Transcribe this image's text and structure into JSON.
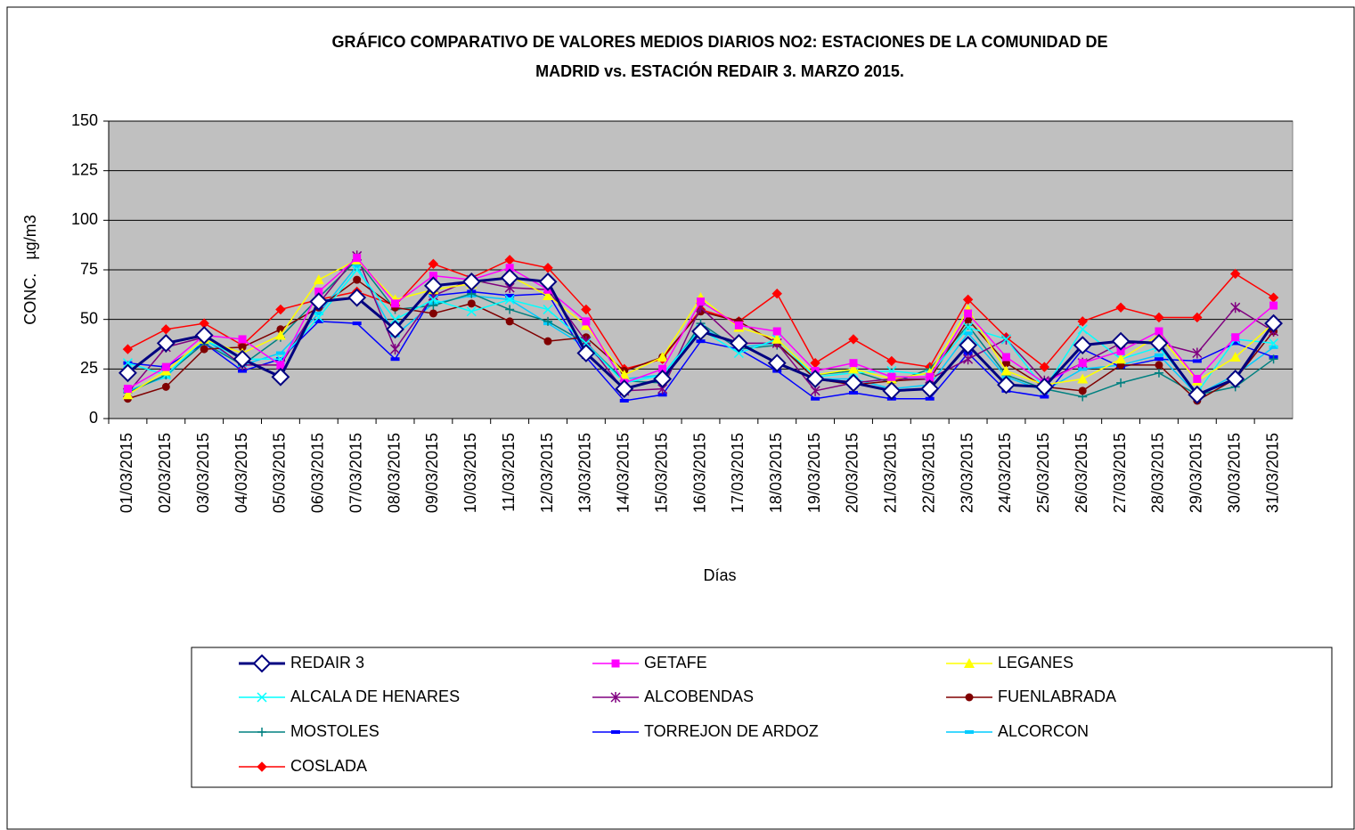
{
  "chart_data": {
    "type": "line",
    "title": [
      "GRÁFICO COMPARATIVO DE VALORES MEDIOS DIARIOS NO2: ESTACIONES DE LA COMUNIDAD DE",
      "MADRID vs. ESTACIÓN REDAIR 3. MARZO 2015."
    ],
    "x_label": "Días",
    "y_label": "CONC.   µg/m3",
    "categories": [
      "01/03/2015",
      "02/03/2015",
      "03/03/2015",
      "04/03/2015",
      "05/03/2015",
      "06/03/2015",
      "07/03/2015",
      "08/03/2015",
      "09/03/2015",
      "10/03/2015",
      "11/03/2015",
      "12/03/2015",
      "13/03/2015",
      "14/03/2015",
      "15/03/2015",
      "16/03/2015",
      "17/03/2015",
      "18/03/2015",
      "19/03/2015",
      "20/03/2015",
      "21/03/2015",
      "22/03/2015",
      "23/03/2015",
      "24/03/2015",
      "25/03/2015",
      "26/03/2015",
      "27/03/2015",
      "28/03/2015",
      "29/03/2015",
      "30/03/2015",
      "31/03/2015"
    ],
    "ylim": [
      0,
      150
    ],
    "yticks": [
      0,
      25,
      50,
      75,
      100,
      125,
      150
    ],
    "grid": true,
    "series": [
      {
        "name": "REDAIR 3",
        "color": "#000080",
        "marker": "diamond",
        "values": [
          23,
          38,
          42,
          30,
          21,
          59,
          61,
          45,
          67,
          69,
          71,
          69,
          33,
          15,
          20,
          44,
          38,
          28,
          20,
          18,
          14,
          15,
          37,
          17,
          16,
          37,
          39,
          38,
          12,
          20,
          48
        ]
      },
      {
        "name": "GETAFE",
        "color": "#ff00ff",
        "marker": "square",
        "values": [
          15,
          26,
          42,
          40,
          27,
          64,
          81,
          58,
          72,
          70,
          76,
          65,
          49,
          18,
          25,
          59,
          47,
          44,
          24,
          28,
          21,
          21,
          53,
          31,
          18,
          28,
          34,
          44,
          20,
          41,
          57
        ]
      },
      {
        "name": "LEGANES",
        "color": "#ffff00",
        "marker": "triangle",
        "values": [
          12,
          24,
          40,
          33,
          42,
          70,
          80,
          60,
          65,
          68,
          72,
          62,
          47,
          22,
          31,
          61,
          46,
          40,
          22,
          25,
          20,
          23,
          55,
          24,
          17,
          20,
          30,
          42,
          19,
          31,
          48
        ]
      },
      {
        "name": "ALCALA DE HENARES",
        "color": "#00ffff",
        "marker": "x",
        "values": [
          28,
          22,
          40,
          30,
          30,
          51,
          75,
          50,
          60,
          54,
          60,
          55,
          38,
          18,
          22,
          45,
          33,
          40,
          21,
          23,
          24,
          22,
          46,
          40,
          15,
          45,
          30,
          36,
          13,
          40,
          38
        ]
      },
      {
        "name": "ALCOBENDAS",
        "color": "#800080",
        "marker": "star",
        "values": [
          13,
          36,
          41,
          27,
          27,
          58,
          82,
          35,
          62,
          70,
          66,
          65,
          39,
          14,
          15,
          56,
          38,
          38,
          14,
          18,
          20,
          20,
          30,
          40,
          19,
          28,
          38,
          38,
          33,
          56,
          44
        ]
      },
      {
        "name": "FUENLABRADA",
        "color": "#800000",
        "marker": "circle",
        "values": [
          10,
          16,
          35,
          36,
          45,
          56,
          70,
          56,
          53,
          58,
          49,
          39,
          41,
          24,
          31,
          54,
          49,
          38,
          20,
          17,
          19,
          20,
          50,
          28,
          16,
          14,
          27,
          27,
          9,
          20,
          44
        ]
      },
      {
        "name": "MOSTOLES",
        "color": "#008080",
        "marker": "plus",
        "values": [
          13,
          22,
          38,
          27,
          41,
          61,
          80,
          55,
          57,
          63,
          55,
          49,
          38,
          19,
          18,
          48,
          35,
          37,
          22,
          24,
          18,
          25,
          47,
          22,
          15,
          11,
          18,
          23,
          12,
          16,
          30
        ]
      },
      {
        "name": "TORREJON DE ARDOZ",
        "color": "#0000ff",
        "marker": "dash",
        "values": [
          28,
          26,
          38,
          24,
          30,
          49,
          48,
          30,
          62,
          64,
          62,
          63,
          31,
          9,
          12,
          39,
          35,
          24,
          10,
          13,
          10,
          10,
          33,
          14,
          11,
          35,
          26,
          30,
          29,
          38,
          31
        ]
      },
      {
        "name": "ALCORCON",
        "color": "#00ccff",
        "marker": "dash",
        "values": [
          14,
          21,
          40,
          27,
          33,
          53,
          77,
          42,
          58,
          62,
          60,
          48,
          36,
          20,
          22,
          46,
          36,
          38,
          20,
          20,
          15,
          17,
          43,
          21,
          14,
          25,
          27,
          32,
          12,
          22,
          36
        ]
      },
      {
        "name": "COSLADA",
        "color": "#ff0000",
        "marker": "diamond",
        "values": [
          35,
          45,
          48,
          37,
          55,
          60,
          64,
          57,
          78,
          71,
          80,
          76,
          55,
          25,
          30,
          55,
          49,
          63,
          28,
          40,
          29,
          26,
          60,
          41,
          26,
          49,
          56,
          51,
          51,
          73,
          61
        ]
      }
    ]
  }
}
